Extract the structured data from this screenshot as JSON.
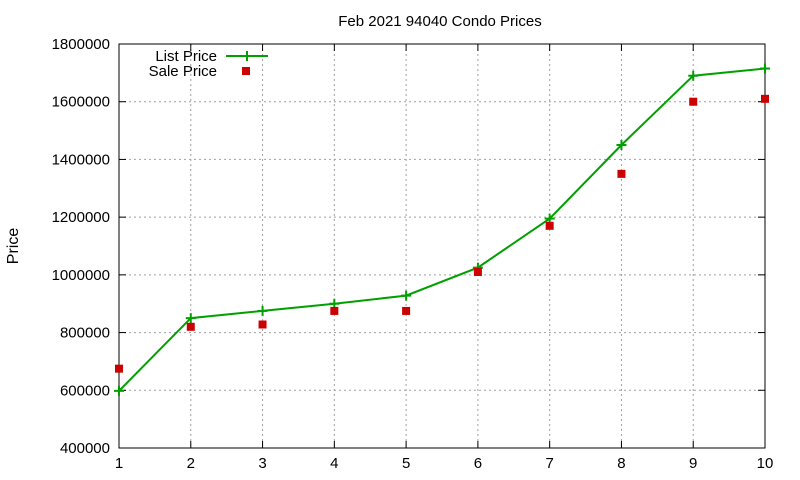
{
  "chart_data": {
    "type": "line",
    "title": "Feb 2021 94040 Condo Prices",
    "xlabel": "",
    "ylabel": "Price",
    "x": [
      1,
      2,
      3,
      4,
      5,
      6,
      7,
      8,
      9,
      10
    ],
    "xlim": [
      1,
      10
    ],
    "ylim": [
      400000,
      1800000
    ],
    "xticks": [
      "1",
      "2",
      "3",
      "4",
      "5",
      "6",
      "7",
      "8",
      "9",
      "10"
    ],
    "yticks": [
      "400000",
      "600000",
      "800000",
      "1000000",
      "1200000",
      "1400000",
      "1600000",
      "1800000"
    ],
    "grid": true,
    "legend_position": "top-left",
    "series": [
      {
        "name": "List Price",
        "kind": "line-with-plus-markers",
        "color": "#00a000",
        "values": [
          598000,
          850000,
          875000,
          900000,
          928000,
          1025000,
          1195000,
          1450000,
          1690000,
          1715000
        ]
      },
      {
        "name": "Sale Price",
        "kind": "square-markers",
        "color": "#cc0000",
        "values": [
          675000,
          820000,
          828000,
          875000,
          875000,
          1010000,
          1170000,
          1350000,
          1600000,
          1610000
        ]
      }
    ]
  }
}
